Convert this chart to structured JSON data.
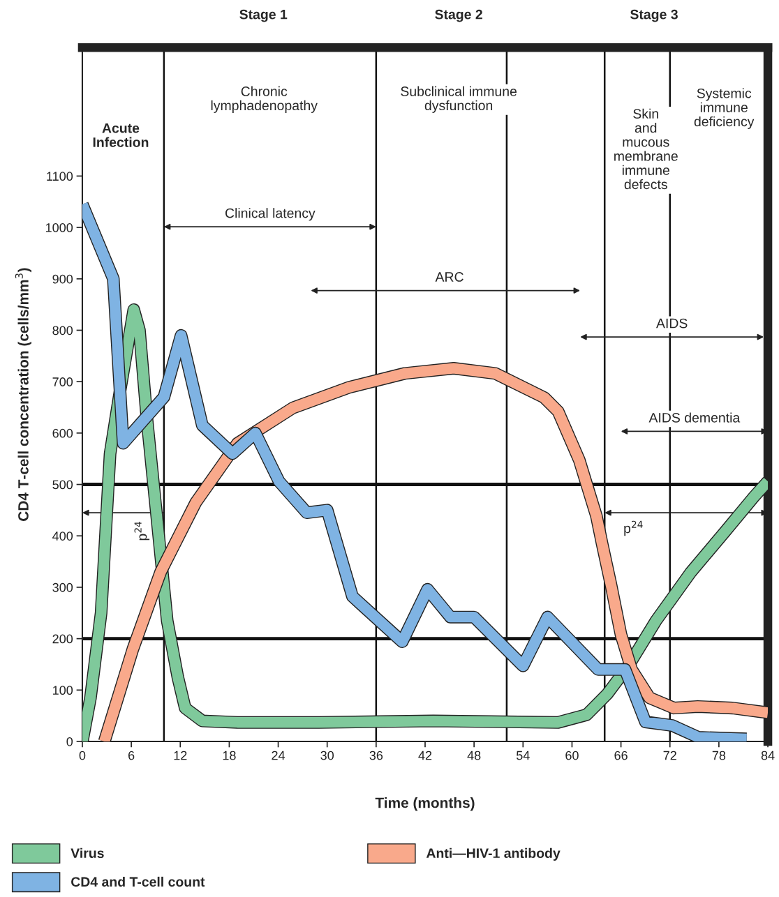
{
  "chart_data": {
    "type": "line",
    "xlabel": "Time (months)",
    "ylabel": "CD4 T-cell concentration (cells/mm$^{3}$)",
    "xlim": [
      0,
      84
    ],
    "xticks": [
      0,
      6,
      12,
      18,
      24,
      30,
      36,
      42,
      48,
      54,
      60,
      66,
      72,
      78,
      84
    ],
    "ylim": [
      0,
      1350
    ],
    "yticks": [
      0,
      100,
      200,
      300,
      400,
      500,
      600,
      700,
      800,
      900,
      1000,
      1100
    ],
    "grid": false,
    "legend": "bottom",
    "series": [
      {
        "name": "Virus",
        "color": "#7fc99b",
        "x": [
          0,
          1,
          2.3,
          3.4,
          4.6,
          6.3,
          7,
          7.9,
          9.2,
          10.4,
          11.7,
          12.6,
          14.7,
          19,
          29,
          43,
          58.3,
          61.8,
          64.3,
          66.9,
          70.3,
          74.6,
          78.9,
          82.3,
          84
        ],
        "values": [
          0,
          85,
          250,
          560,
          680,
          840,
          800,
          630,
          425,
          235,
          125,
          65,
          40,
          37,
          37,
          40,
          37,
          52,
          92,
          147,
          235,
          330,
          411,
          476,
          506
        ]
      },
      {
        "name": "Anti—HIV-1 antibody",
        "color": "#f9a98b",
        "x": [
          2.7,
          6.2,
          9.6,
          13.9,
          19,
          25.8,
          32.7,
          39.5,
          45.5,
          50.6,
          56.6,
          58.3,
          60.9,
          63,
          63.7,
          64.8,
          66,
          67.3,
          69.5,
          72.5,
          75.4,
          79.7,
          84
        ],
        "values": [
          0,
          180,
          330,
          465,
          580,
          649,
          689,
          716,
          726,
          716,
          669,
          642,
          547,
          438,
          384,
          303,
          208,
          140,
          85,
          65,
          68,
          65,
          56
        ]
      },
      {
        "name": "CD4 and T-cell count",
        "color": "#7fb3e3",
        "x": [
          0,
          3.8,
          5,
          10,
          12.1,
          14.7,
          18.4,
          21.2,
          24.1,
          27.5,
          30,
          33.1,
          39.2,
          42.3,
          45.1,
          48,
          54,
          57,
          63.2,
          66.5,
          69,
          72.3,
          75.5,
          81.4
        ],
        "values": [
          1045,
          900,
          580,
          670,
          790,
          615,
          560,
          600,
          506,
          445,
          450,
          282,
          194,
          296,
          242,
          242,
          147,
          242,
          140,
          140,
          38,
          31,
          8,
          5
        ]
      }
    ],
    "ref_lines": [
      {
        "axis": "y",
        "value": 500
      },
      {
        "axis": "y",
        "value": 200
      },
      {
        "axis": "x",
        "value": 10
      },
      {
        "axis": "x",
        "value": 36
      },
      {
        "axis": "x",
        "value": 52
      },
      {
        "axis": "x",
        "value": 64
      },
      {
        "axis": "x",
        "value": 72
      }
    ],
    "annotations": [
      "Clinical latency",
      "ARC",
      "AIDS",
      "AIDS dementia",
      "p$^{24}$",
      "p$^{24}$",
      "Stage 1",
      "Stage 2",
      "Stage 3",
      "Acute\nInfection",
      "Chronic\nlymphadenopathy",
      "Subclinical immune\ndysfunction",
      "Skin\nand\nmucous\nmembrane\nimmune\ndefects",
      "Systemic\nimmune\ndeficiency"
    ]
  }
}
